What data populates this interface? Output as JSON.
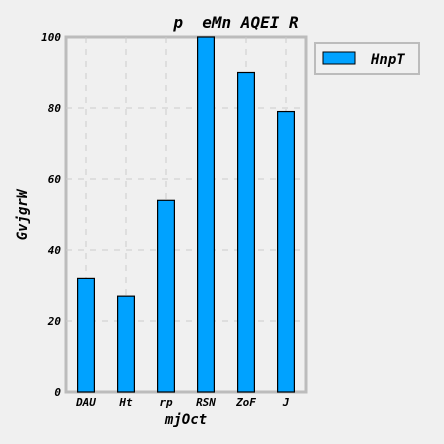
{
  "chart_data": {
    "type": "bar",
    "title": "p  eMn AQEI R",
    "xlabel": "mjOct",
    "ylabel": "GvjgrW",
    "categories": [
      "DAU",
      "Ht",
      "rp",
      "RSN",
      "ZoF",
      "J"
    ],
    "series": [
      {
        "name": "HnpT",
        "values": [
          32,
          27,
          54,
          100,
          90,
          79
        ]
      }
    ],
    "ylim": [
      0,
      100
    ],
    "yticks": [
      0,
      20,
      40,
      60,
      80,
      100
    ],
    "grid": true,
    "legend": "outside-top-right",
    "colors": {
      "bar": "#00a2ff",
      "background": "#f0f0f0",
      "grid": "#cbcbcb",
      "axes_border": "#bcbcbc"
    }
  }
}
